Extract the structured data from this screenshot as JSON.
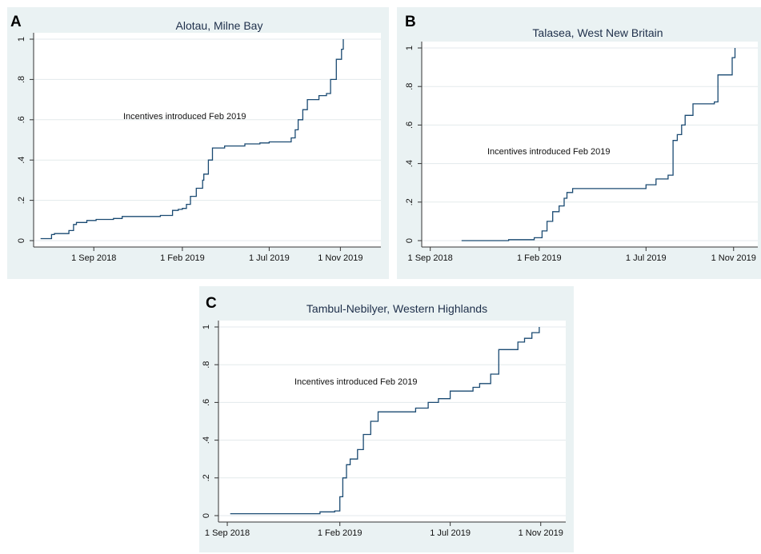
{
  "chart_data": [
    {
      "type": "line",
      "panel_letter": "A",
      "title": "Alotau, Milne Bay",
      "annotation": "Incentives introduced Feb 2019",
      "xlabel": "",
      "ylabel": "",
      "xlim": [
        "2018-05-20",
        "2020-01-10"
      ],
      "ylim": [
        0,
        1
      ],
      "x_ticks": [
        {
          "date": "2018-09-01",
          "label": "1 Sep 2018"
        },
        {
          "date": "2019-02-01",
          "label": "1 Feb 2019"
        },
        {
          "date": "2019-07-01",
          "label": "1 Jul 2019"
        },
        {
          "date": "2019-11-01",
          "label": "1 Nov 2019"
        }
      ],
      "y_ticks": [
        "0",
        ".2",
        ".4",
        ".6",
        ".8",
        "1"
      ],
      "grid": true,
      "series": [
        {
          "x": [
            "2018-06-01",
            "2018-06-20",
            "2018-06-25",
            "2018-07-20",
            "2018-07-28",
            "2018-08-02",
            "2018-08-20",
            "2018-09-05",
            "2018-10-05",
            "2018-10-20",
            "2018-11-25",
            "2018-12-25",
            "2019-01-15",
            "2019-01-25",
            "2019-02-01",
            "2019-02-08",
            "2019-02-15",
            "2019-02-25",
            "2019-03-08",
            "2019-03-10",
            "2019-03-18",
            "2019-03-25",
            "2019-04-15",
            "2019-05-20",
            "2019-06-15",
            "2019-07-01",
            "2019-08-01",
            "2019-08-08",
            "2019-08-15",
            "2019-08-20",
            "2019-08-28",
            "2019-09-05",
            "2019-09-25",
            "2019-10-08",
            "2019-10-15",
            "2019-10-25",
            "2019-11-03",
            "2019-11-06"
          ],
          "y": [
            0.01,
            0.03,
            0.035,
            0.05,
            0.08,
            0.09,
            0.1,
            0.105,
            0.11,
            0.12,
            0.12,
            0.125,
            0.15,
            0.155,
            0.16,
            0.18,
            0.22,
            0.26,
            0.3,
            0.33,
            0.4,
            0.46,
            0.47,
            0.48,
            0.485,
            0.49,
            0.49,
            0.51,
            0.55,
            0.6,
            0.65,
            0.7,
            0.72,
            0.73,
            0.8,
            0.9,
            0.95,
            1.0
          ]
        }
      ]
    },
    {
      "type": "line",
      "panel_letter": "B",
      "title": "Talasea, West New Britain",
      "annotation": "Incentives introduced Feb 2019",
      "xlabel": "",
      "ylabel": "",
      "xlim": [
        "2018-08-20",
        "2019-12-05"
      ],
      "ylim": [
        0,
        1
      ],
      "x_ticks": [
        {
          "date": "2018-09-01",
          "label": "1 Sep 2018"
        },
        {
          "date": "2019-02-01",
          "label": "1 Feb 2019"
        },
        {
          "date": "2019-07-01",
          "label": "1 Jul 2019"
        },
        {
          "date": "2019-11-01",
          "label": "1 Nov 2019"
        }
      ],
      "y_ticks": [
        "0",
        ".2",
        ".4",
        ".6",
        ".8",
        "1"
      ],
      "grid": true,
      "series": [
        {
          "x": [
            "2018-10-15",
            "2018-12-20",
            "2019-01-25",
            "2019-02-05",
            "2019-02-12",
            "2019-02-20",
            "2019-03-01",
            "2019-03-08",
            "2019-03-12",
            "2019-03-20",
            "2019-06-25",
            "2019-07-01",
            "2019-07-15",
            "2019-08-01",
            "2019-08-08",
            "2019-08-14",
            "2019-08-20",
            "2019-08-25",
            "2019-09-05",
            "2019-10-05",
            "2019-10-10",
            "2019-10-30",
            "2019-11-03"
          ],
          "y": [
            0.0,
            0.005,
            0.015,
            0.05,
            0.1,
            0.15,
            0.18,
            0.22,
            0.25,
            0.27,
            0.27,
            0.29,
            0.32,
            0.34,
            0.52,
            0.55,
            0.6,
            0.65,
            0.71,
            0.72,
            0.86,
            0.95,
            1.0
          ]
        }
      ]
    },
    {
      "type": "line",
      "panel_letter": "C",
      "title": "Tambul-Nebilyer, Western Highlands",
      "annotation": "Incentives introduced Feb 2019",
      "xlabel": "",
      "ylabel": "",
      "xlim": [
        "2018-08-20",
        "2019-12-05"
      ],
      "ylim": [
        0,
        1
      ],
      "x_ticks": [
        {
          "date": "2018-09-01",
          "label": "1 Sep 2018"
        },
        {
          "date": "2019-02-01",
          "label": "1 Feb 2019"
        },
        {
          "date": "2019-07-01",
          "label": "1 Jul 2019"
        },
        {
          "date": "2019-11-01",
          "label": "1 Nov 2019"
        }
      ],
      "y_ticks": [
        "0",
        ".2",
        ".4",
        ".6",
        ".8",
        "1"
      ],
      "grid": true,
      "series": [
        {
          "x": [
            "2018-09-05",
            "2019-01-05",
            "2019-01-25",
            "2019-02-01",
            "2019-02-05",
            "2019-02-10",
            "2019-02-15",
            "2019-02-25",
            "2019-03-05",
            "2019-03-15",
            "2019-03-25",
            "2019-04-15",
            "2019-05-15",
            "2019-06-01",
            "2019-06-15",
            "2019-07-01",
            "2019-08-01",
            "2019-08-10",
            "2019-08-25",
            "2019-09-05",
            "2019-10-01",
            "2019-10-10",
            "2019-10-20",
            "2019-10-30"
          ],
          "y": [
            0.01,
            0.02,
            0.025,
            0.1,
            0.2,
            0.27,
            0.3,
            0.35,
            0.43,
            0.5,
            0.55,
            0.55,
            0.57,
            0.6,
            0.62,
            0.66,
            0.68,
            0.7,
            0.75,
            0.88,
            0.92,
            0.94,
            0.97,
            1.0
          ]
        }
      ]
    }
  ]
}
